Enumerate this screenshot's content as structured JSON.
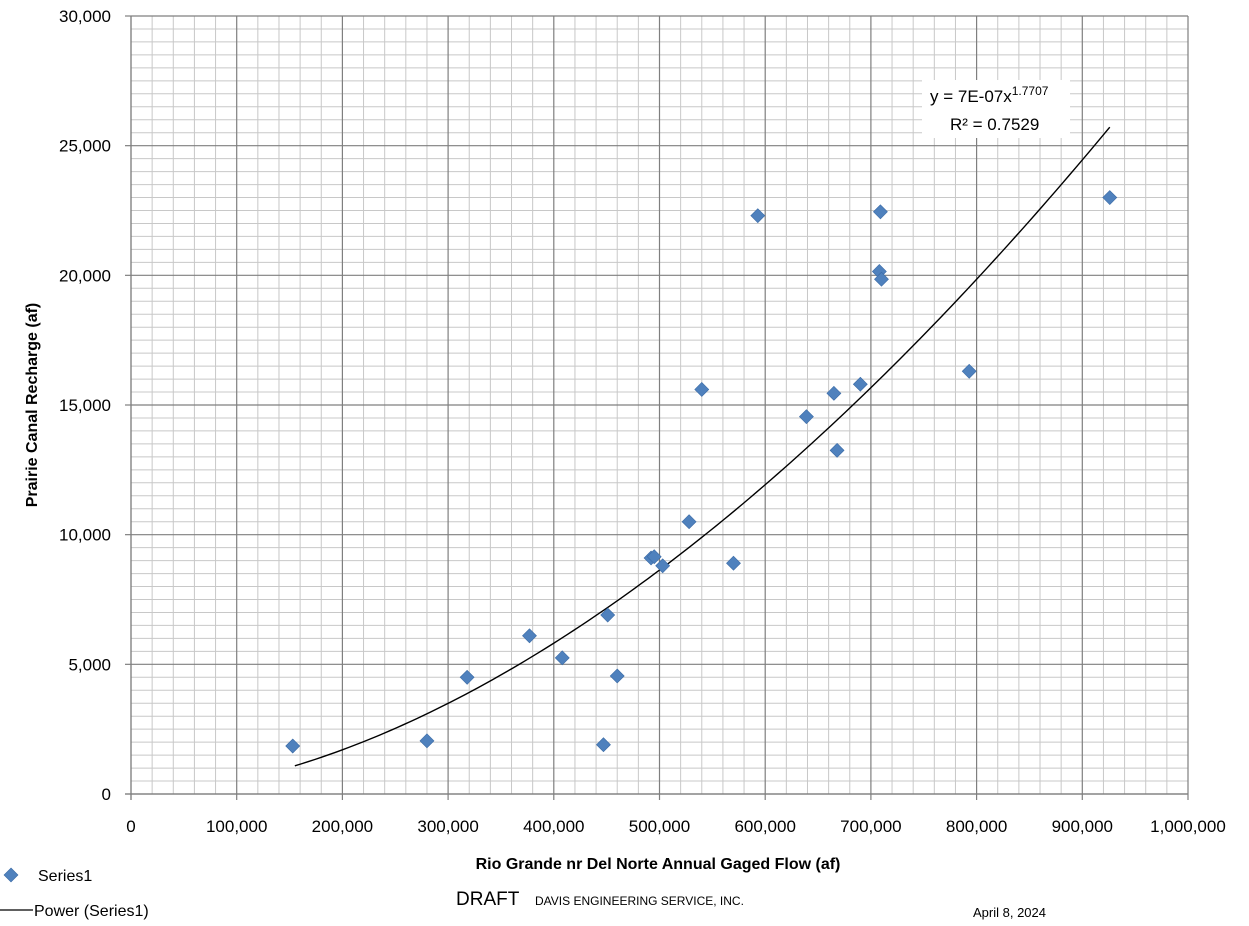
{
  "chart_data": {
    "type": "scatter",
    "xlabel": "Rio Grande nr Del Norte Annual Gaged Flow (af)",
    "ylabel": "Prairie Canal Recharge (af)",
    "xlim": [
      0,
      1000000
    ],
    "ylim": [
      0,
      30000
    ],
    "x_ticks": [
      "0",
      "100,000",
      "200,000",
      "300,000",
      "400,000",
      "500,000",
      "600,000",
      "700,000",
      "800,000",
      "900,000",
      "1,000,000"
    ],
    "y_ticks": [
      "0",
      "5,000",
      "10,000",
      "15,000",
      "20,000",
      "25,000",
      "30,000"
    ],
    "x_tick_values": [
      0,
      100000,
      200000,
      300000,
      400000,
      500000,
      600000,
      700000,
      800000,
      900000,
      1000000
    ],
    "y_tick_values": [
      0,
      5000,
      10000,
      15000,
      20000,
      25000,
      30000
    ],
    "grid": true,
    "series": [
      {
        "name": "Series1",
        "color": "#4f81bd",
        "marker": "diamond",
        "points": [
          {
            "x": 153000,
            "y": 1850
          },
          {
            "x": 280000,
            "y": 2050
          },
          {
            "x": 318000,
            "y": 4500
          },
          {
            "x": 377000,
            "y": 6100
          },
          {
            "x": 408000,
            "y": 5250
          },
          {
            "x": 447000,
            "y": 1900
          },
          {
            "x": 451000,
            "y": 6900
          },
          {
            "x": 460000,
            "y": 4550
          },
          {
            "x": 492000,
            "y": 9100
          },
          {
            "x": 495000,
            "y": 9150
          },
          {
            "x": 503000,
            "y": 8800
          },
          {
            "x": 528000,
            "y": 10500
          },
          {
            "x": 540000,
            "y": 15600
          },
          {
            "x": 570000,
            "y": 8900
          },
          {
            "x": 593000,
            "y": 22300
          },
          {
            "x": 639000,
            "y": 14550
          },
          {
            "x": 665000,
            "y": 15450
          },
          {
            "x": 668000,
            "y": 13250
          },
          {
            "x": 690000,
            "y": 15800
          },
          {
            "x": 708000,
            "y": 20150
          },
          {
            "x": 709000,
            "y": 22450
          },
          {
            "x": 710000,
            "y": 19850
          },
          {
            "x": 793000,
            "y": 16300
          },
          {
            "x": 926000,
            "y": 23000
          }
        ]
      }
    ],
    "trendline": {
      "name": "Power (Series1)",
      "type": "power",
      "coefficient": 7e-07,
      "exponent": 1.7707,
      "x_range": [
        155000,
        926000
      ],
      "color": "#000000",
      "equation_prefix": "y = 7E-07x",
      "equation_exponent": "1.7707",
      "r_squared_label": "R² = 0.7529"
    },
    "legend": {
      "placement": "bottom-left",
      "entries": [
        "Series1",
        "Power (Series1)"
      ]
    }
  },
  "footer": {
    "draft": "DRAFT",
    "company": "DAVIS ENGINEERING SERVICE, INC.",
    "date": "April 8, 2024"
  }
}
